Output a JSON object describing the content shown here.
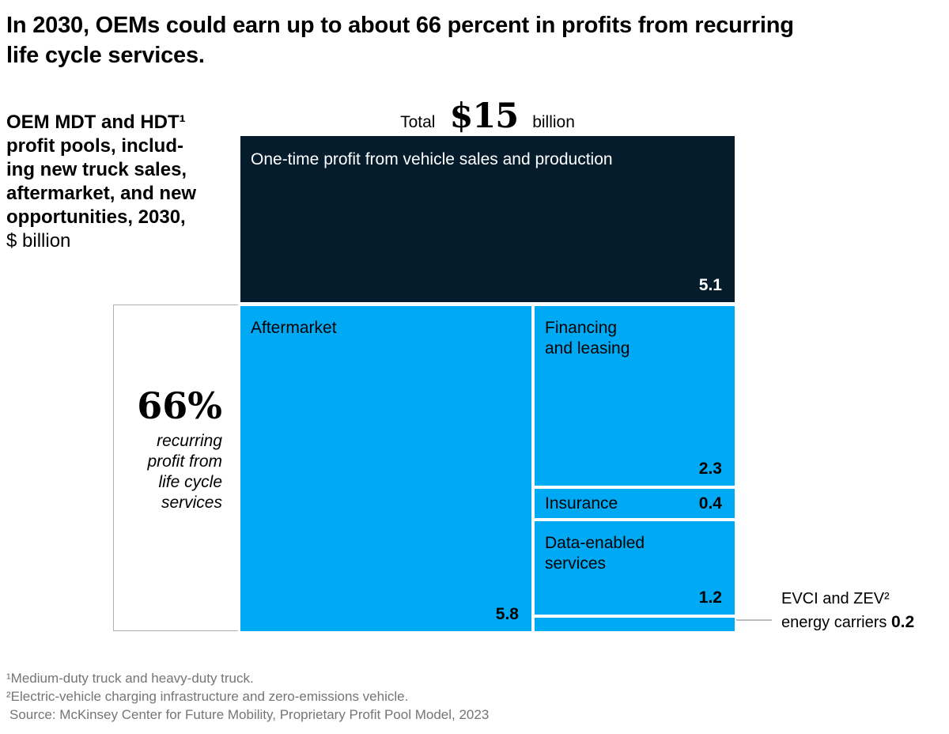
{
  "title": "In 2030, OEMs could earn up to about 66 percent in profits from recurring\nlife cycle services.",
  "descriptor": {
    "main": "OEM MDT and HDT¹\nprofit pools, includ-\ning new truck sales,\naftermarket, and new\nopportunities, 2030,",
    "unit": "$ billion"
  },
  "total": {
    "prefix": "Total",
    "value": "$15",
    "suffix": "billion"
  },
  "blocks": {
    "one_time": {
      "label": "One-time profit from vehicle sales and production",
      "value": "5.1"
    },
    "aftermarket": {
      "label": "Aftermarket",
      "value": "5.8"
    },
    "financing": {
      "label": "Financing\nand leasing",
      "value": "2.3"
    },
    "insurance": {
      "label": "Insurance",
      "value": "0.4"
    },
    "data_services": {
      "label": "Data-enabled\nservices",
      "value": "1.2"
    }
  },
  "bracket": {
    "percent": "66%",
    "caption": "recurring\nprofit from\nlife cycle\nservices"
  },
  "callout": {
    "line1": "EVCI and ZEV²",
    "line2": "energy carriers",
    "value": "0.2"
  },
  "footnotes": [
    "¹Medium-duty truck and heavy-duty truck.",
    "²Electric-vehicle charging infrastructure and zero-emissions vehicle.",
    "Source: McKinsey Center for Future Mobility, Proprietary Profit Pool Model, 2023"
  ],
  "colors": {
    "one_time_navy": "#051C2C",
    "recurring_blue": "#00A9F4",
    "bracket_gray": "#b2b2b2",
    "footnote_gray": "#757575"
  },
  "chart_data": {
    "type": "treemap",
    "title": "In 2030, OEMs could earn up to about 66 percent in profits from recurring life cycle services.",
    "subtitle": "OEM MDT and HDT¹ profit pools, including new truck sales, aftermarket, and new opportunities, 2030, $ billion",
    "unit": "$ billion",
    "total": 15,
    "total_label": "Total $15 billion",
    "segments": [
      {
        "label": "One-time profit from vehicle sales and production",
        "value": 5.1,
        "category": "one-time",
        "color": "#051C2C"
      },
      {
        "label": "Aftermarket",
        "value": 5.8,
        "category": "recurring",
        "color": "#00A9F4"
      },
      {
        "label": "Financing and leasing",
        "value": 2.3,
        "category": "recurring",
        "color": "#00A9F4"
      },
      {
        "label": "Insurance",
        "value": 0.4,
        "category": "recurring",
        "color": "#00A9F4"
      },
      {
        "label": "Data-enabled services",
        "value": 1.2,
        "category": "recurring",
        "color": "#00A9F4"
      },
      {
        "label": "EVCI and ZEV² energy carriers",
        "value": 0.2,
        "category": "recurring",
        "color": "#00A9F4"
      }
    ],
    "annotations": [
      {
        "value": "66%",
        "text": "recurring profit from life cycle services",
        "applies_to": "recurring segments"
      },
      {
        "text": "EVCI and ZEV² energy carriers 0.2",
        "applies_to": "smallest recurring strip"
      }
    ],
    "legend_position": "none",
    "grid": false
  }
}
